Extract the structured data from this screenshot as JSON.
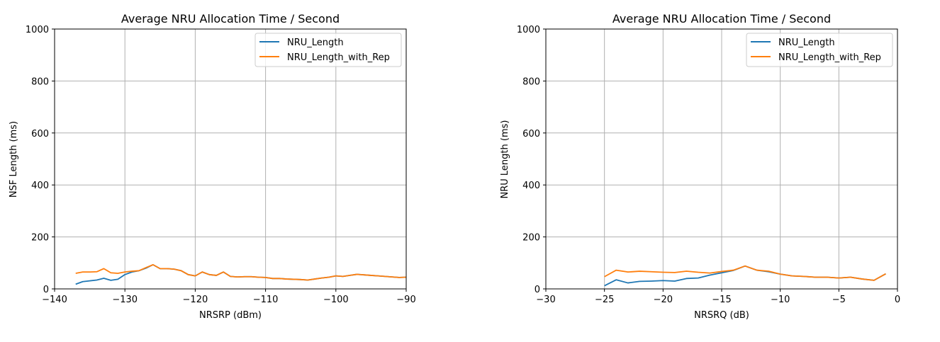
{
  "colors": {
    "nru_length": "#1f77b4",
    "nru_length_with_rep": "#ff7f0e",
    "grid": "#b0b0b0",
    "axes": "#000000"
  },
  "chart_data": [
    {
      "type": "line",
      "title": "Average NRU Allocation Time / Second",
      "xlabel": "NRSRP (dBm)",
      "ylabel": "NSF Length (ms)",
      "xlim": [
        -140,
        -90
      ],
      "ylim": [
        0,
        1000
      ],
      "xticks": [
        -140,
        -130,
        -120,
        -110,
        -100,
        -90
      ],
      "xtick_labels": [
        "−140",
        "−130",
        "−120",
        "−110",
        "−100",
        "−90"
      ],
      "yticks": [
        0,
        200,
        400,
        600,
        800,
        1000
      ],
      "ytick_labels": [
        "0",
        "200",
        "400",
        "600",
        "800",
        "1000"
      ],
      "grid": true,
      "legend_position": "top-right",
      "series": [
        {
          "name": "NRU_Length",
          "color": "#1f77b4",
          "x": [
            -137,
            -136,
            -135,
            -134,
            -133,
            -132,
            -131,
            -130,
            -129,
            -128,
            -127,
            -126,
            -125,
            -124,
            -123,
            -122,
            -121,
            -120,
            -119,
            -118,
            -117,
            -116,
            -115,
            -114,
            -113,
            -112,
            -111,
            -110,
            -109,
            -108,
            -107,
            -106,
            -105,
            -104,
            -103,
            -102,
            -101,
            -100,
            -99,
            -98,
            -97,
            -96,
            -95,
            -94,
            -93,
            -92,
            -91,
            -90
          ],
          "y": [
            18,
            28,
            31,
            34,
            41,
            33,
            37,
            55,
            65,
            70,
            80,
            93,
            78,
            78,
            76,
            70,
            55,
            50,
            65,
            55,
            52,
            65,
            48,
            46,
            47,
            47,
            45,
            44,
            40,
            40,
            38,
            37,
            36,
            34,
            38,
            42,
            45,
            50,
            48,
            52,
            56,
            54,
            52,
            50,
            48,
            46,
            44,
            45
          ]
        },
        {
          "name": "NRU_Length_with_Rep",
          "color": "#ff7f0e",
          "x": [
            -137,
            -136,
            -135,
            -134,
            -133,
            -132,
            -131,
            -130,
            -129,
            -128,
            -127,
            -126,
            -125,
            -124,
            -123,
            -122,
            -121,
            -120,
            -119,
            -118,
            -117,
            -116,
            -115,
            -114,
            -113,
            -112,
            -111,
            -110,
            -109,
            -108,
            -107,
            -106,
            -105,
            -104,
            -103,
            -102,
            -101,
            -100,
            -99,
            -98,
            -97,
            -96,
            -95,
            -94,
            -93,
            -92,
            -91,
            -90
          ],
          "y": [
            60,
            65,
            65,
            66,
            78,
            62,
            60,
            65,
            68,
            70,
            82,
            93,
            78,
            78,
            76,
            70,
            55,
            50,
            65,
            55,
            52,
            65,
            48,
            46,
            47,
            47,
            45,
            44,
            40,
            40,
            38,
            37,
            36,
            34,
            38,
            42,
            45,
            50,
            48,
            52,
            56,
            54,
            52,
            50,
            48,
            46,
            44,
            45
          ]
        }
      ]
    },
    {
      "type": "line",
      "title": "Average NRU Allocation Time / Second",
      "xlabel": "NRSRQ (dB)",
      "ylabel": "NRU Length (ms)",
      "xlim": [
        -30,
        0
      ],
      "ylim": [
        0,
        1000
      ],
      "xticks": [
        -30,
        -25,
        -20,
        -15,
        -10,
        -5,
        0
      ],
      "xtick_labels": [
        "−30",
        "−25",
        "−20",
        "−15",
        "−10",
        "−5",
        "0"
      ],
      "yticks": [
        0,
        200,
        400,
        600,
        800,
        1000
      ],
      "ytick_labels": [
        "0",
        "200",
        "400",
        "600",
        "800",
        "1000"
      ],
      "grid": true,
      "legend_position": "top-right",
      "series": [
        {
          "name": "NRU_Length",
          "color": "#1f77b4",
          "x": [
            -25,
            -24,
            -23,
            -22,
            -21,
            -20,
            -19,
            -18,
            -17,
            -16,
            -15,
            -14,
            -13,
            -12,
            -11,
            -10,
            -9,
            -8,
            -7,
            -6,
            -5,
            -4,
            -3,
            -2,
            -1
          ],
          "y": [
            12,
            35,
            23,
            29,
            30,
            32,
            30,
            40,
            42,
            53,
            62,
            71,
            88,
            72,
            66,
            57,
            50,
            48,
            45,
            45,
            42,
            45,
            38,
            33,
            58
          ]
        },
        {
          "name": "NRU_Length_with_Rep",
          "color": "#ff7f0e",
          "x": [
            -25,
            -24,
            -23,
            -22,
            -21,
            -20,
            -19,
            -18,
            -17,
            -16,
            -15,
            -14,
            -13,
            -12,
            -11,
            -10,
            -9,
            -8,
            -7,
            -6,
            -5,
            -4,
            -3,
            -2,
            -1
          ],
          "y": [
            47,
            72,
            65,
            68,
            66,
            64,
            63,
            68,
            64,
            61,
            67,
            72,
            88,
            72,
            68,
            57,
            50,
            48,
            45,
            45,
            42,
            45,
            38,
            33,
            58
          ]
        }
      ]
    }
  ]
}
